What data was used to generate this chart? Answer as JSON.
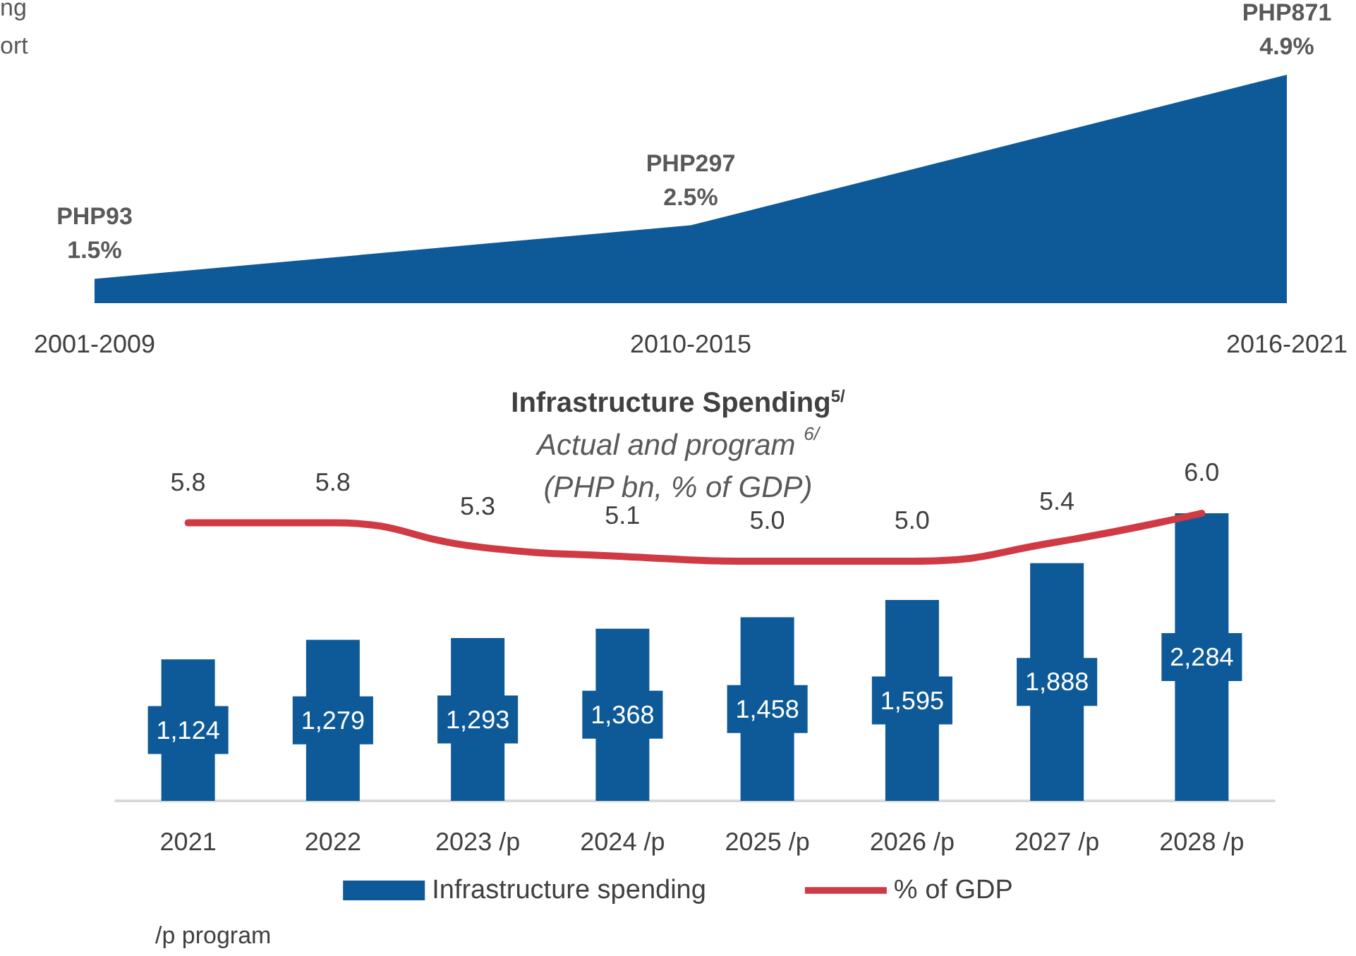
{
  "chart_data": [
    {
      "type": "area",
      "categories": [
        "2001-2009",
        "2010-2015",
        "2016-2021"
      ],
      "values": [
        93,
        297,
        871
      ],
      "value_labels": [
        "PHP93\n1.5%",
        "PHP297\n2.5%",
        "PHP871\n4.9%"
      ],
      "color": "#0e5a98",
      "tick_labels": "x",
      "annotations": [
        "ng\nort"
      ]
    },
    {
      "type": "bar",
      "title": "Infrastructure Spending$^{5/}$",
      "subtitle": "Actual and program $^{6/}$\n(PHP bn, % of GDP)",
      "categories": [
        "2021",
        "2022",
        "2023 /p",
        "2024 /p",
        "2025 /p",
        "2026 /p",
        "2027 /p",
        "2028 /p"
      ],
      "series": [
        {
          "name": "Infrastructure spending",
          "type": "bar",
          "color": "#0e5a98",
          "values": [
            1124,
            1279,
            1293,
            1368,
            1458,
            1595,
            1888,
            2284
          ],
          "value_labels": [
            "1,124",
            "1,279",
            "1,293",
            "1,368",
            "1,458",
            "1,595",
            "1,888",
            "2,284"
          ]
        },
        {
          "name": "% of GDP",
          "type": "line",
          "axis": "y2",
          "color": "#cf3a45",
          "values": [
            5.8,
            5.8,
            5.3,
            5.1,
            5.0,
            5.0,
            5.4,
            6.0
          ],
          "value_labels": [
            "5.8",
            "5.8",
            "5.3",
            "5.1",
            "5.0",
            "5.0",
            "5.4",
            "6.0"
          ]
        }
      ],
      "legend": "bottom",
      "marker": "none",
      "tick_labels": "x",
      "annotations": [
        "/p program"
      ]
    }
  ]
}
